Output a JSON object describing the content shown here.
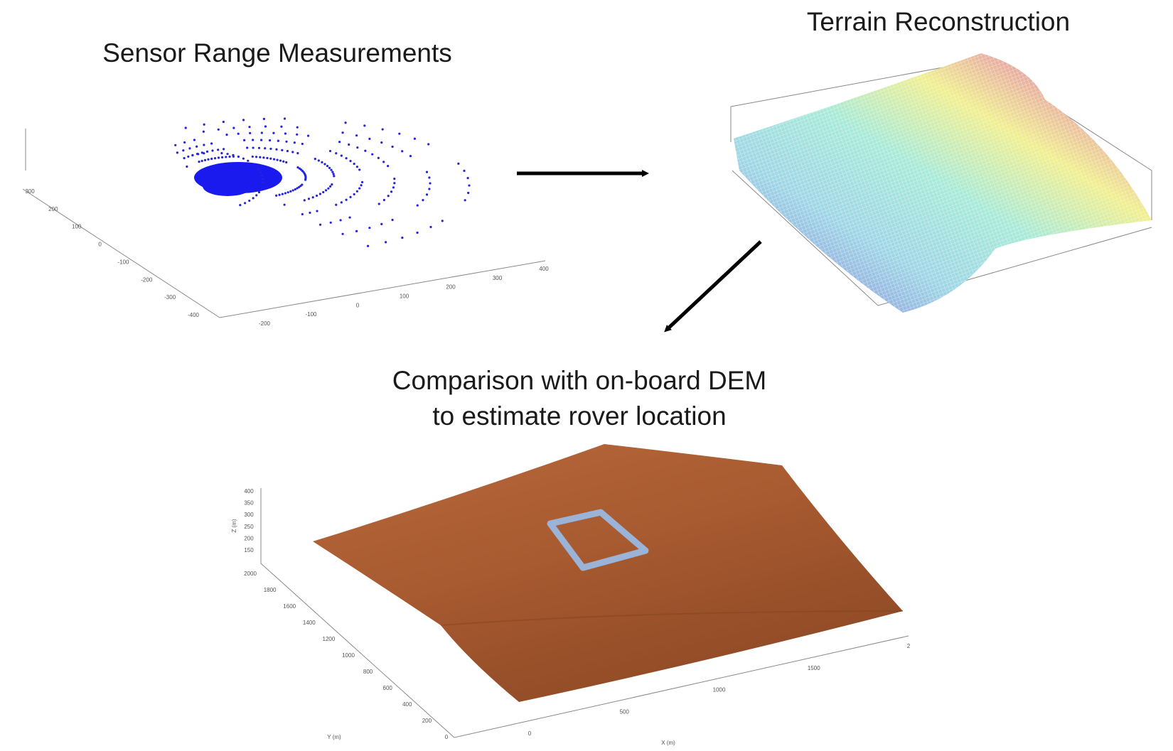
{
  "sensor": {
    "title": "Sensor Range Measurements",
    "x_ticks": [
      "-200",
      "-100",
      "0",
      "100",
      "200",
      "300",
      "400"
    ],
    "y_ticks": [
      "300",
      "200",
      "100",
      "0",
      "-100",
      "-200",
      "-300",
      "-400"
    ]
  },
  "terrain": {
    "title": "Terrain Reconstruction"
  },
  "dem": {
    "title_lines": [
      "Comparison with on-board DEM",
      "to estimate rover location"
    ],
    "x_ticks": [
      "0",
      "500",
      "1000",
      "1500",
      "2"
    ],
    "y_ticks": [
      "2000",
      "1800",
      "1600",
      "1400",
      "1200",
      "1000",
      "800",
      "600",
      "400",
      "200",
      "0"
    ],
    "z_ticks": [
      "400",
      "350",
      "300",
      "250",
      "200",
      "150"
    ],
    "x_label": "X (m)",
    "y_label": "Y (m)",
    "z_label": "Z (m)"
  }
}
